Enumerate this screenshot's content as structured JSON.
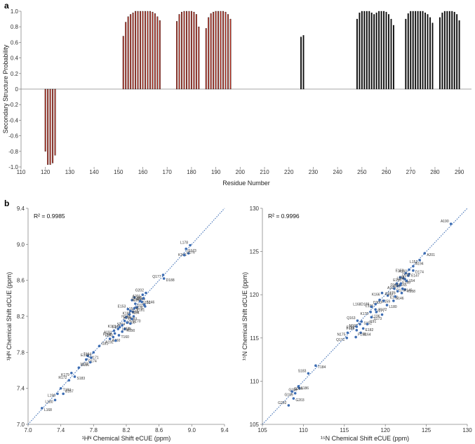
{
  "panel_a_label": "a",
  "panel_b_label": "b",
  "chart_data": [
    {
      "type": "bar",
      "id": "secondary-structure",
      "title": "",
      "xlabel": "Residue Number",
      "ylabel": "Secondary Structure Probability",
      "xlim": [
        110,
        295
      ],
      "ylim": [
        -1.0,
        1.0
      ],
      "xticks": [
        "110",
        "120",
        "130",
        "140",
        "150",
        "160",
        "170",
        "180",
        "190",
        "200",
        "210",
        "220",
        "230",
        "240",
        "250",
        "260",
        "270",
        "280",
        "290"
      ],
      "yticks": [
        "-1.0",
        "-0.8",
        "-0.6",
        "-0.4",
        "-0.2",
        "0",
        "0.2",
        "0.4",
        "0.6",
        "0.8",
        "1.0"
      ],
      "grid": false,
      "series": [
        {
          "color": "#c0392b",
          "x": [
            120,
            121,
            122,
            123,
            124
          ],
          "values": [
            -0.8,
            -0.97,
            -0.97,
            -0.95,
            -0.85
          ]
        },
        {
          "color": "#c0392b",
          "x": [
            152,
            153,
            154,
            155,
            156,
            157,
            158,
            159,
            160,
            161,
            162,
            163,
            164,
            165,
            166,
            167
          ],
          "values": [
            0.68,
            0.86,
            0.93,
            0.96,
            0.98,
            1.0,
            1.0,
            1.0,
            1.0,
            1.0,
            1.0,
            1.0,
            0.99,
            0.97,
            0.93,
            0.88
          ]
        },
        {
          "color": "#c0392b",
          "x": [
            174,
            175,
            176,
            177,
            178,
            179,
            180,
            181,
            182,
            183
          ],
          "values": [
            0.87,
            0.96,
            0.99,
            1.0,
            1.0,
            1.0,
            1.0,
            0.99,
            0.96,
            0.8
          ]
        },
        {
          "color": "#c0392b",
          "x": [
            186,
            187,
            188,
            189,
            190,
            191,
            192,
            193,
            194,
            195,
            196
          ],
          "values": [
            0.78,
            0.92,
            0.97,
            0.99,
            1.0,
            1.0,
            1.0,
            1.0,
            0.99,
            0.96,
            0.9
          ]
        },
        {
          "color": "#111111",
          "x": [
            225,
            226,
            248,
            249,
            250,
            251,
            252,
            253,
            254,
            255,
            256,
            257,
            258,
            259,
            260,
            261,
            262,
            263,
            268,
            269,
            270,
            271,
            272,
            273,
            274,
            275,
            276,
            277,
            278,
            279,
            282,
            283,
            284,
            285,
            286,
            287,
            288,
            289,
            290
          ],
          "values": [
            0.67,
            0.69,
            0.9,
            0.98,
            1.0,
            1.0,
            1.0,
            1.0,
            0.98,
            0.96,
            0.98,
            1.0,
            1.0,
            1.0,
            0.99,
            0.96,
            0.9,
            0.82,
            0.9,
            0.97,
            1.0,
            1.0,
            1.0,
            1.0,
            1.0,
            1.0,
            0.98,
            0.96,
            0.92,
            0.85,
            0.92,
            0.98,
            1.0,
            1.0,
            1.0,
            1.0,
            0.99,
            0.96,
            0.88
          ]
        }
      ]
    },
    {
      "type": "scatter",
      "id": "hn-correlation",
      "title": "",
      "annotation": "R² = 0.9985",
      "xlabel": "¹Hᴺ Chemical Shift eCUE (ppm)",
      "ylabel": "¹Hᴺ Chemical Shift dCUE (ppm)",
      "xlim": [
        7.0,
        9.4
      ],
      "ylim": [
        7.0,
        9.4
      ],
      "xticks": [
        "7.0",
        "7.4",
        "7.8",
        "8.2",
        "8.6",
        "9.0",
        "9.4"
      ],
      "yticks": [
        "7.0",
        "7.4",
        "7.8",
        "8.2",
        "8.6",
        "9.0",
        "9.4"
      ],
      "trendline": "y = x (dotted)",
      "points": [
        {
          "x": 8.98,
          "y": 8.99,
          "label": "L178"
        },
        {
          "x": 8.93,
          "y": 8.95,
          "label": "S173"
        },
        {
          "x": 8.96,
          "y": 8.9,
          "label": "K166"
        },
        {
          "x": 8.91,
          "y": 8.88,
          "label": "D176"
        },
        {
          "x": 8.65,
          "y": 8.66,
          "label": "Q177"
        },
        {
          "x": 8.66,
          "y": 8.62,
          "label": "D188"
        },
        {
          "x": 8.44,
          "y": 8.46,
          "label": "G202"
        },
        {
          "x": 8.3,
          "y": 8.41,
          "label": "G189"
        },
        {
          "x": 8.4,
          "y": 8.44,
          "label": "A201"
        },
        {
          "x": 8.27,
          "y": 8.38,
          "label": "L195"
        },
        {
          "x": 8.41,
          "y": 8.4,
          "label": "E198"
        },
        {
          "x": 8.37,
          "y": 8.37,
          "label": "S152"
        },
        {
          "x": 8.39,
          "y": 8.36,
          "label": "E147"
        },
        {
          "x": 8.31,
          "y": 8.34,
          "label": "D150"
        },
        {
          "x": 8.33,
          "y": 8.3,
          "label": "L151"
        },
        {
          "x": 8.42,
          "y": 8.33,
          "label": "S146"
        },
        {
          "x": 8.43,
          "y": 8.31,
          "label": "N175"
        },
        {
          "x": 8.3,
          "y": 8.29,
          "label": "E181"
        },
        {
          "x": 8.22,
          "y": 8.28,
          "label": "E153"
        },
        {
          "x": 8.25,
          "y": 8.26,
          "label": "I154"
        },
        {
          "x": 8.28,
          "y": 8.25,
          "label": "K186"
        },
        {
          "x": 8.24,
          "y": 8.22,
          "label": "I156"
        },
        {
          "x": 8.29,
          "y": 8.2,
          "label": "K158"
        },
        {
          "x": 8.2,
          "y": 8.19,
          "label": "Q193"
        },
        {
          "x": 8.27,
          "y": 8.17,
          "label": "H149"
        },
        {
          "x": 8.18,
          "y": 8.15,
          "label": "D200"
        },
        {
          "x": 8.21,
          "y": 8.13,
          "label": "S204"
        },
        {
          "x": 8.25,
          "y": 8.12,
          "label": "S170"
        },
        {
          "x": 8.15,
          "y": 8.1,
          "label": "L165"
        },
        {
          "x": 8.12,
          "y": 8.08,
          "label": "L157"
        },
        {
          "x": 8.1,
          "y": 8.06,
          "label": "K163"
        },
        {
          "x": 8.18,
          "y": 8.06,
          "label": "A190"
        },
        {
          "x": 8.05,
          "y": 8.04,
          "label": "A191"
        },
        {
          "x": 8.15,
          "y": 8.03,
          "label": "I148"
        },
        {
          "x": 8.06,
          "y": 8.01,
          "label": "L159"
        },
        {
          "x": 8.11,
          "y": 7.99,
          "label": "T160"
        },
        {
          "x": 8.04,
          "y": 7.97,
          "label": "F169"
        },
        {
          "x": 8.0,
          "y": 7.95,
          "label": "A160"
        },
        {
          "x": 8.07,
          "y": 7.93,
          "label": "A192"
        },
        {
          "x": 7.87,
          "y": 7.87,
          "label": "I181"
        },
        {
          "x": 7.8,
          "y": 7.8,
          "label": "T164"
        },
        {
          "x": 7.73,
          "y": 7.76,
          "label": "M171"
        },
        {
          "x": 7.77,
          "y": 7.74,
          "label": "E199"
        },
        {
          "x": 7.71,
          "y": 7.72,
          "label": "D174"
        },
        {
          "x": 7.76,
          "y": 7.69,
          "label": "L177"
        },
        {
          "x": 7.62,
          "y": 7.63,
          "label": "S186"
        },
        {
          "x": 7.53,
          "y": 7.57,
          "label": "K179"
        },
        {
          "x": 7.57,
          "y": 7.53,
          "label": "S183"
        },
        {
          "x": 7.5,
          "y": 7.49,
          "label": "R172"
        },
        {
          "x": 7.4,
          "y": 7.4,
          "label": "T184"
        },
        {
          "x": 7.36,
          "y": 7.34,
          "label": "L196"
        },
        {
          "x": 7.43,
          "y": 7.34,
          "label": "E167"
        },
        {
          "x": 7.33,
          "y": 7.27,
          "label": "L180"
        },
        {
          "x": 7.17,
          "y": 7.18,
          "label": "L168"
        }
      ]
    },
    {
      "type": "scatter",
      "id": "n15-correlation",
      "title": "",
      "annotation": "R² = 0.9996",
      "xlabel": "¹⁵N Chemical Shift eCUE (ppm)",
      "ylabel": "¹⁵N Chemical Shift dCUE (ppm)",
      "xlim": [
        105,
        130
      ],
      "ylim": [
        105,
        130
      ],
      "xticks": [
        "105",
        "110",
        "115",
        "120",
        "125",
        "130"
      ],
      "yticks": [
        "105",
        "110",
        "115",
        "120",
        "125",
        "130"
      ],
      "trendline": "y = x (dotted)",
      "points": [
        {
          "x": 128.0,
          "y": 128.2,
          "label": "A190"
        },
        {
          "x": 124.8,
          "y": 124.8,
          "label": "A201"
        },
        {
          "x": 124.2,
          "y": 124.0,
          "label": "L151"
        },
        {
          "x": 123.4,
          "y": 123.3,
          "label": "A194"
        },
        {
          "x": 122.9,
          "y": 122.9,
          "label": "A160"
        },
        {
          "x": 123.4,
          "y": 122.8,
          "label": "D174"
        },
        {
          "x": 122.5,
          "y": 122.5,
          "label": "E153"
        },
        {
          "x": 122.9,
          "y": 122.4,
          "label": "E147"
        },
        {
          "x": 122.8,
          "y": 122.2,
          "label": "I187"
        },
        {
          "x": 121.8,
          "y": 122.0,
          "label": "D192"
        },
        {
          "x": 122.2,
          "y": 121.9,
          "label": "E155"
        },
        {
          "x": 122.4,
          "y": 121.8,
          "label": "L154"
        },
        {
          "x": 122.6,
          "y": 121.6,
          "label": "L168"
        },
        {
          "x": 121.4,
          "y": 121.3,
          "label": "L165"
        },
        {
          "x": 121.9,
          "y": 121.3,
          "label": "D156"
        },
        {
          "x": 121.8,
          "y": 121.1,
          "label": "E149"
        },
        {
          "x": 121.5,
          "y": 121.0,
          "label": "A191"
        },
        {
          "x": 121.1,
          "y": 120.7,
          "label": "D176"
        },
        {
          "x": 122.1,
          "y": 120.7,
          "label": "I181"
        },
        {
          "x": 122.4,
          "y": 120.6,
          "label": "K158"
        },
        {
          "x": 121.5,
          "y": 120.4,
          "label": "L178"
        },
        {
          "x": 122.0,
          "y": 120.2,
          "label": "H145"
        },
        {
          "x": 119.6,
          "y": 120.2,
          "label": "K166"
        },
        {
          "x": 120.3,
          "y": 119.9,
          "label": "E161"
        },
        {
          "x": 121.2,
          "y": 119.8,
          "label": "A193"
        },
        {
          "x": 119.3,
          "y": 119.4,
          "label": "D159"
        },
        {
          "x": 119.8,
          "y": 119.3,
          "label": "D200"
        },
        {
          "x": 121.0,
          "y": 119.3,
          "label": "S146"
        },
        {
          "x": 118.8,
          "y": 118.9,
          "label": "L195"
        },
        {
          "x": 120.2,
          "y": 118.8,
          "label": "L180"
        },
        {
          "x": 118.3,
          "y": 118.6,
          "label": "L168D188"
        },
        {
          "x": 118.8,
          "y": 118.3,
          "label": "I177"
        },
        {
          "x": 118.2,
          "y": 118.0,
          "label": "K170"
        },
        {
          "x": 118.9,
          "y": 118.0,
          "label": "R172"
        },
        {
          "x": 119.6,
          "y": 117.7,
          "label": "L196"
        },
        {
          "x": 118.3,
          "y": 117.4,
          "label": "S173"
        },
        {
          "x": 116.6,
          "y": 117.0,
          "label": "Q163"
        },
        {
          "x": 117.1,
          "y": 116.9,
          "label": "S152"
        },
        {
          "x": 116.9,
          "y": 116.6,
          "label": "M197"
        },
        {
          "x": 117.8,
          "y": 116.6,
          "label": "I191"
        },
        {
          "x": 116.5,
          "y": 116.3,
          "label": "F169"
        },
        {
          "x": 117.3,
          "y": 116.1,
          "label": "E182"
        },
        {
          "x": 116.5,
          "y": 115.9,
          "label": "E167"
        },
        {
          "x": 117.0,
          "y": 115.6,
          "label": "T164"
        },
        {
          "x": 115.4,
          "y": 115.6,
          "label": "N175"
        },
        {
          "x": 116.4,
          "y": 115.1,
          "label": "F198"
        },
        {
          "x": 115.3,
          "y": 115.0,
          "label": "Q171"
        },
        {
          "x": 111.5,
          "y": 111.8,
          "label": "T184"
        },
        {
          "x": 110.6,
          "y": 110.9,
          "label": "S183"
        },
        {
          "x": 109.4,
          "y": 109.4,
          "label": "S186"
        },
        {
          "x": 109.5,
          "y": 109.2,
          "label": "G189"
        },
        {
          "x": 108.6,
          "y": 108.8,
          "label": "G204"
        },
        {
          "x": 109.0,
          "y": 108.6,
          "label": "G199"
        },
        {
          "x": 108.8,
          "y": 108.0,
          "label": "G203"
        },
        {
          "x": 108.2,
          "y": 107.2,
          "label": "G202"
        }
      ]
    }
  ]
}
